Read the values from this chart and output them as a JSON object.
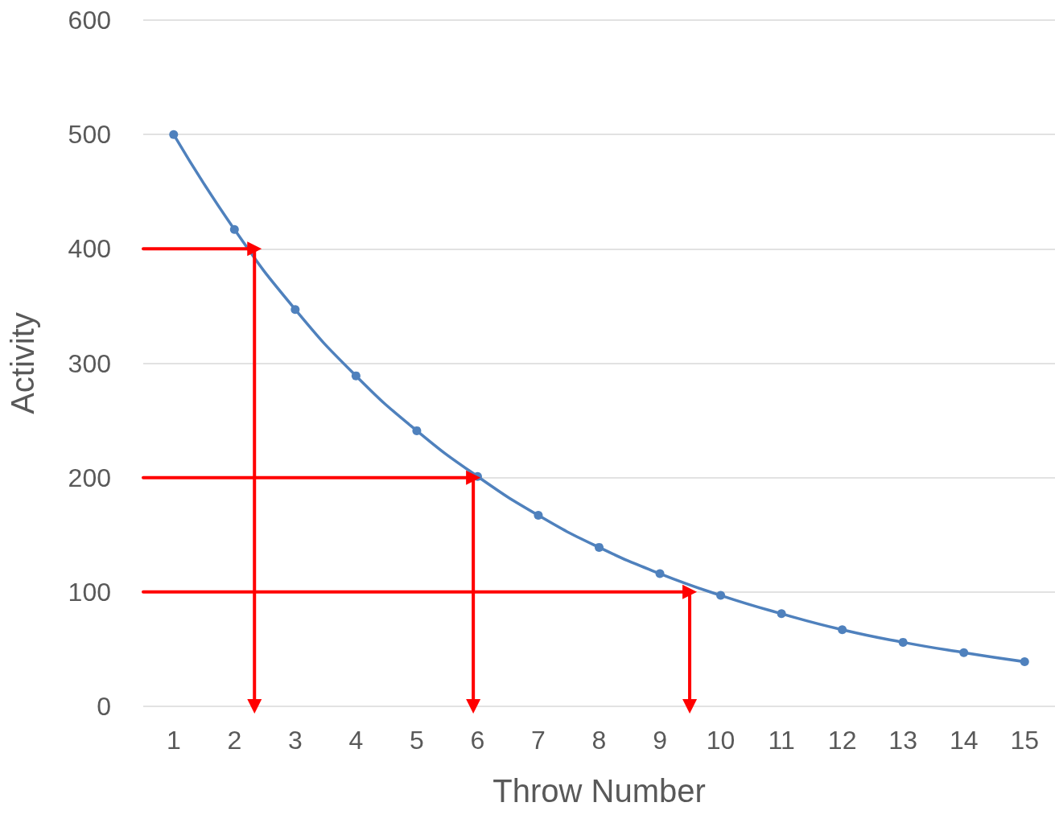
{
  "chart_data": {
    "type": "line",
    "xlabel": "Throw Number",
    "ylabel": "Activity",
    "xlim": [
      0.5,
      15.5
    ],
    "xticks": [
      1,
      2,
      3,
      4,
      5,
      6,
      7,
      8,
      9,
      10,
      11,
      12,
      13,
      14,
      15
    ],
    "ylim": [
      0,
      600
    ],
    "yticks": [
      0,
      100,
      200,
      300,
      400,
      500,
      600
    ],
    "grid": "y",
    "series": [
      {
        "color": "#4f81bd",
        "marker": "circle",
        "x": [
          1,
          2,
          3,
          4,
          5,
          6,
          7,
          8,
          9,
          10,
          11,
          12,
          13,
          14,
          15
        ],
        "values": [
          500,
          417,
          347,
          289,
          241,
          201,
          167,
          139,
          116,
          97,
          81,
          67,
          56,
          47,
          39
        ]
      },
      {
        "color": "#ff0000",
        "marker": "triangle",
        "x": [
          0.5,
          2.33,
          2.33
        ],
        "values": [
          400,
          400,
          0
        ]
      },
      {
        "color": "#ff0000",
        "marker": "triangle",
        "x": [
          0.5,
          5.93,
          5.93
        ],
        "values": [
          200,
          200,
          0
        ]
      },
      {
        "color": "#ff0000",
        "marker": "triangle",
        "x": [
          0.5,
          9.49,
          9.49
        ],
        "values": [
          100,
          100,
          0
        ]
      }
    ]
  }
}
